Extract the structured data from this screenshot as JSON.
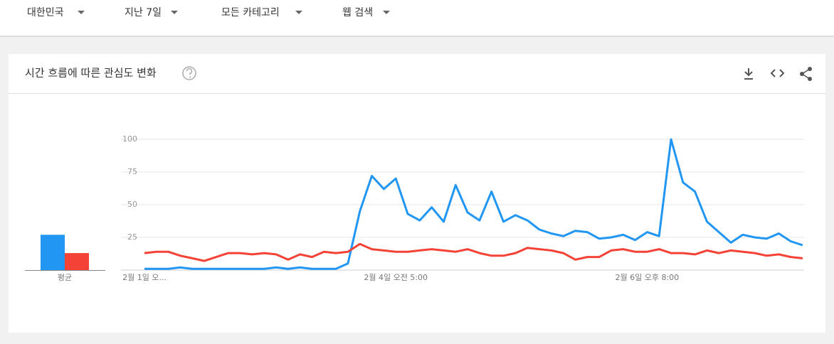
{
  "filters": [
    "대한민국",
    "지난 7일",
    "모든 카테고리",
    "웹 검색"
  ],
  "card": {
    "title": "시간 흐름에 따른 관심도 변화"
  },
  "chart_data": [
    {
      "type": "bar",
      "categories": [
        "평균"
      ],
      "series": [
        {
          "color": "#2196f3",
          "values": [
            27
          ]
        },
        {
          "color": "#f44336",
          "values": [
            13
          ]
        }
      ],
      "ylim": [
        0,
        100
      ]
    },
    {
      "type": "line",
      "categories": [
        "2월 1일 오...",
        null,
        null,
        null,
        null,
        null,
        null,
        null,
        null,
        null,
        null,
        null,
        null,
        null,
        null,
        null,
        null,
        null,
        null,
        null,
        null,
        "2월 4일 오전 5:00",
        null,
        null,
        null,
        null,
        null,
        null,
        null,
        null,
        null,
        null,
        null,
        null,
        null,
        null,
        null,
        null,
        null,
        null,
        null,
        null,
        "2월 6일 오후 8:00",
        null,
        null,
        null,
        null,
        null,
        null,
        null,
        null,
        null,
        null,
        null,
        null,
        null
      ],
      "series": [
        {
          "color": "#2196f3",
          "values": [
            1,
            1,
            1,
            2,
            1,
            1,
            1,
            1,
            1,
            1,
            1,
            2,
            1,
            2,
            1,
            1,
            1,
            5,
            45,
            72,
            62,
            70,
            43,
            38,
            48,
            37,
            65,
            44,
            38,
            60,
            37,
            42,
            38,
            31,
            28,
            26,
            30,
            29,
            24,
            25,
            27,
            23,
            29,
            26,
            100,
            67,
            60,
            37,
            29,
            21,
            27,
            25,
            24,
            28,
            22,
            19
          ]
        },
        {
          "color": "#f44336",
          "values": [
            13,
            14,
            14,
            11,
            9,
            7,
            10,
            13,
            13,
            12,
            13,
            12,
            8,
            12,
            10,
            14,
            13,
            14,
            20,
            16,
            15,
            14,
            14,
            15,
            16,
            15,
            14,
            16,
            13,
            11,
            11,
            13,
            17,
            16,
            15,
            13,
            8,
            10,
            10,
            15,
            16,
            14,
            14,
            16,
            13,
            13,
            12,
            15,
            13,
            15,
            14,
            13,
            11,
            12,
            10,
            9
          ]
        }
      ],
      "ylim": [
        0,
        100
      ],
      "yticks": [
        25,
        50,
        75,
        100
      ],
      "grid": true
    }
  ]
}
